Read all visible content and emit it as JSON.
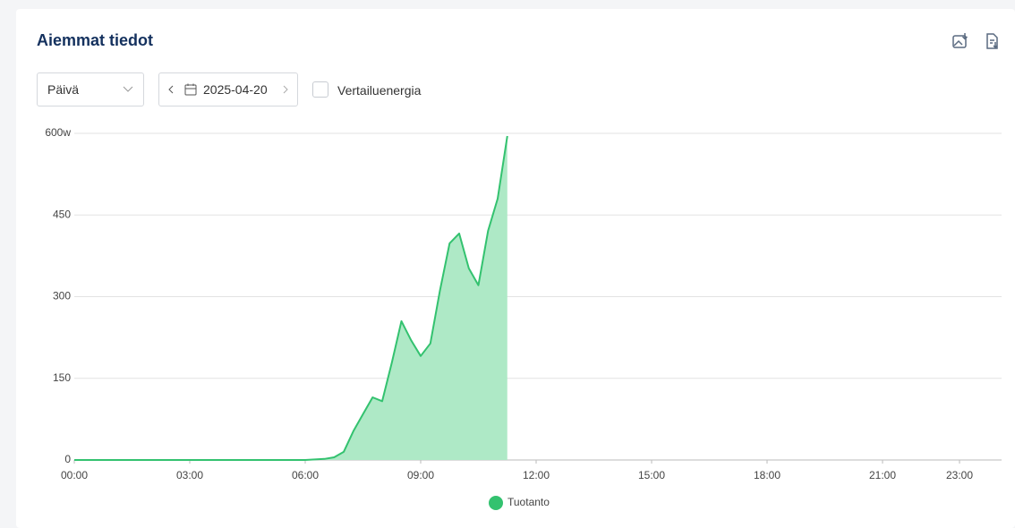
{
  "header": {
    "title": "Aiemmat tiedot"
  },
  "controls": {
    "period": "Päivä",
    "date": "2025-04-20",
    "compare": "Vertailuenergia"
  },
  "chart_data": {
    "type": "area",
    "x": [
      0,
      6,
      6.5,
      6.75,
      7,
      7.25,
      7.5,
      7.75,
      8,
      8.25,
      8.5,
      8.75,
      9,
      9.25,
      9.5,
      9.75,
      10,
      10.25,
      10.5,
      10.75,
      11,
      11.25
    ],
    "series": [
      {
        "name": "Tuotanto",
        "color": "#33c26f",
        "fill": "#aee9c6",
        "values": [
          0,
          0,
          2,
          5,
          15,
          53,
          84,
          115,
          108,
          179,
          255,
          220,
          191,
          214,
          311,
          398,
          416,
          352,
          321,
          421,
          480,
          595
        ]
      }
    ],
    "xlim": [
      0,
      24
    ],
    "xticks": [
      {
        "value": 0,
        "label": "00:00"
      },
      {
        "value": 3,
        "label": "03:00"
      },
      {
        "value": 6,
        "label": "06:00"
      },
      {
        "value": 9,
        "label": "09:00"
      },
      {
        "value": 12,
        "label": "12:00"
      },
      {
        "value": 15,
        "label": "15:00"
      },
      {
        "value": 18,
        "label": "18:00"
      },
      {
        "value": 21,
        "label": "21:00"
      },
      {
        "value": 23,
        "label": "23:00"
      }
    ],
    "ylim": [
      0,
      600
    ],
    "yticks": [
      0,
      150,
      300,
      450,
      {
        "value": 600,
        "label": "600w"
      }
    ],
    "grid": true
  }
}
